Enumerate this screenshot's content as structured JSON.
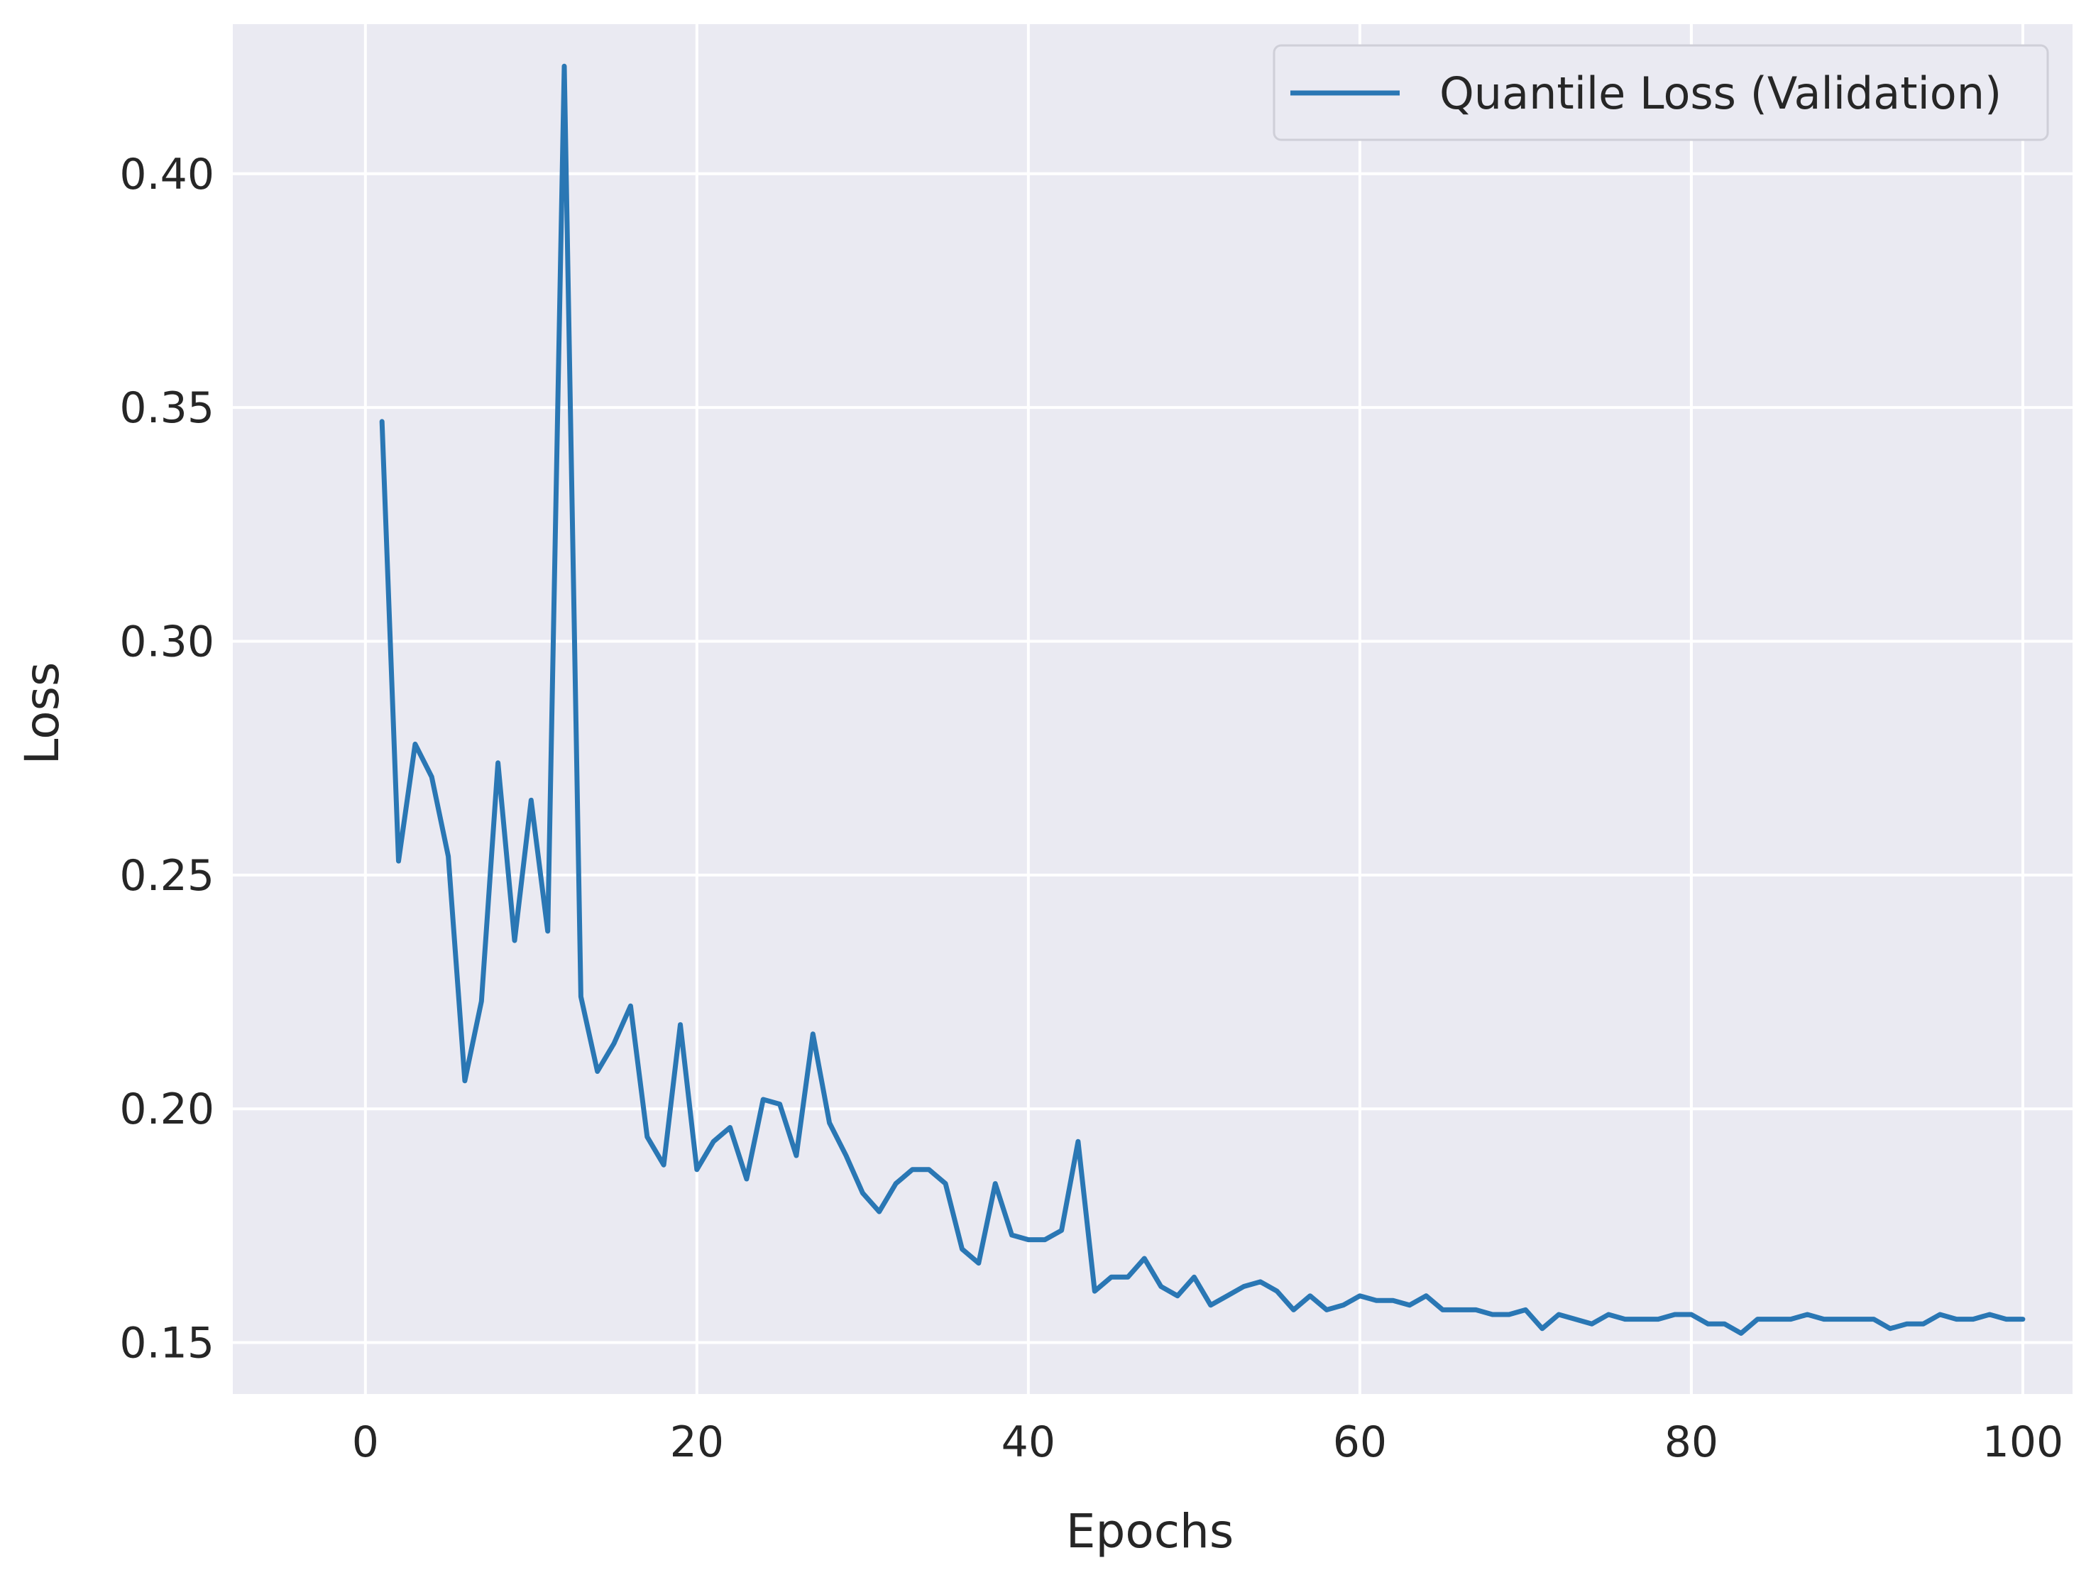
{
  "chart_data": {
    "type": "line",
    "xlabel": "Epochs",
    "ylabel": "Loss",
    "xlim": [
      -8,
      103
    ],
    "ylim": [
      0.139,
      0.432
    ],
    "xticks": [
      0,
      20,
      40,
      60,
      80,
      100
    ],
    "yticks": [
      0.15,
      0.2,
      0.25,
      0.3,
      0.35,
      0.4
    ],
    "xtick_labels": [
      "0",
      "20",
      "40",
      "60",
      "80",
      "100"
    ],
    "ytick_labels": [
      "0.15",
      "0.20",
      "0.25",
      "0.30",
      "0.35",
      "0.40"
    ],
    "grid": true,
    "legend_position": "top-right",
    "background_color": "#eaeaf2",
    "grid_color": "#ffffff",
    "series": [
      {
        "name": "Quantile Loss (Validation)",
        "color": "#2a77b4",
        "x": [
          1,
          2,
          3,
          4,
          5,
          6,
          7,
          8,
          9,
          10,
          11,
          12,
          13,
          14,
          15,
          16,
          17,
          18,
          19,
          20,
          21,
          22,
          23,
          24,
          25,
          26,
          27,
          28,
          29,
          30,
          31,
          32,
          33,
          34,
          35,
          36,
          37,
          38,
          39,
          40,
          41,
          42,
          43,
          44,
          45,
          46,
          47,
          48,
          49,
          50,
          51,
          52,
          53,
          54,
          55,
          56,
          57,
          58,
          59,
          60,
          61,
          62,
          63,
          64,
          65,
          66,
          67,
          68,
          69,
          70,
          71,
          72,
          73,
          74,
          75,
          76,
          77,
          78,
          79,
          80,
          81,
          82,
          83,
          84,
          85,
          86,
          87,
          88,
          89,
          90,
          91,
          92,
          93,
          94,
          95,
          96,
          97,
          98,
          99,
          100
        ],
        "y": [
          0.347,
          0.253,
          0.278,
          0.271,
          0.254,
          0.206,
          0.223,
          0.274,
          0.236,
          0.266,
          0.238,
          0.423,
          0.224,
          0.208,
          0.214,
          0.222,
          0.194,
          0.188,
          0.218,
          0.187,
          0.193,
          0.196,
          0.185,
          0.202,
          0.201,
          0.19,
          0.216,
          0.197,
          0.19,
          0.182,
          0.178,
          0.184,
          0.187,
          0.187,
          0.184,
          0.17,
          0.167,
          0.184,
          0.173,
          0.172,
          0.172,
          0.174,
          0.193,
          0.161,
          0.164,
          0.164,
          0.168,
          0.162,
          0.16,
          0.164,
          0.158,
          0.16,
          0.162,
          0.163,
          0.161,
          0.157,
          0.16,
          0.157,
          0.158,
          0.16,
          0.159,
          0.159,
          0.158,
          0.16,
          0.157,
          0.157,
          0.157,
          0.156,
          0.156,
          0.157,
          0.153,
          0.156,
          0.155,
          0.154,
          0.156,
          0.155,
          0.155,
          0.155,
          0.156,
          0.156,
          0.154,
          0.154,
          0.152,
          0.155,
          0.155,
          0.155,
          0.156,
          0.155,
          0.155,
          0.155,
          0.155,
          0.153,
          0.154,
          0.154,
          0.156,
          0.155,
          0.155,
          0.156,
          0.155,
          0.155
        ]
      }
    ]
  }
}
